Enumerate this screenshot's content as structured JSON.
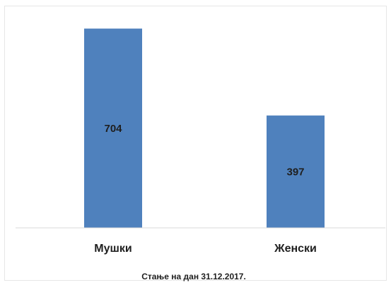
{
  "chart_data": {
    "type": "bar",
    "categories": [
      "Мушки",
      "Женски"
    ],
    "values": [
      704,
      397
    ],
    "data_labels": [
      "704",
      "397"
    ],
    "caption": "Стање на дан 31.12.2017.",
    "xlabel": "",
    "ylabel": "",
    "ylim": [
      0,
      800
    ],
    "grid": false,
    "legend": "none",
    "bar_color": "#4f81bd",
    "axis_color": "#d9d9d9"
  }
}
